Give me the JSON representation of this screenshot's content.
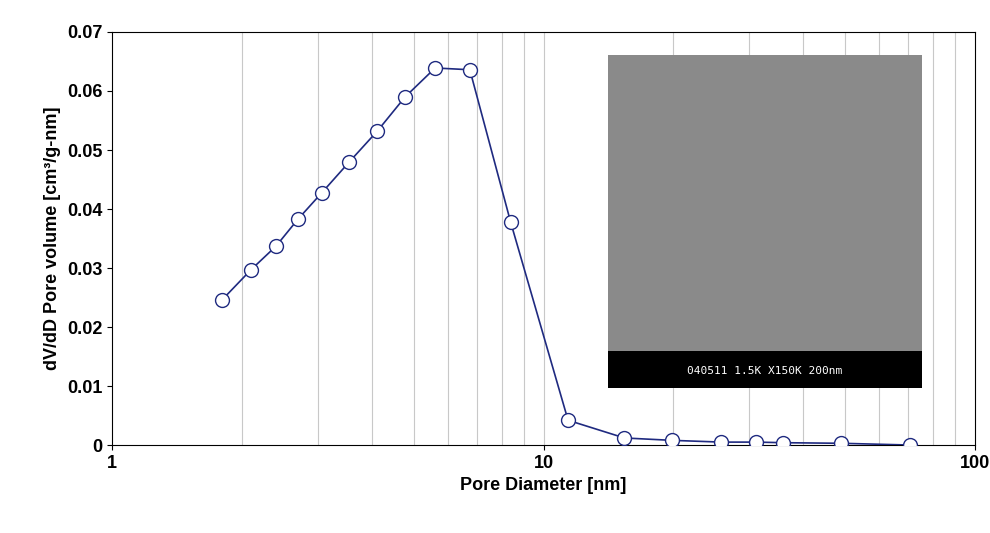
{
  "chart_data": {
    "type": "line",
    "x_label": "Pore Diameter [nm]",
    "y_label": "dV/dD Pore volume [cm³/g-nm]",
    "inset_caption": "040511 1.5K X150K 200nm",
    "x": [
      1.8,
      2.1,
      2.4,
      2.7,
      3.06,
      3.55,
      4.12,
      4.78,
      5.61,
      6.75,
      8.39,
      11.4,
      15.4,
      19.8,
      25.8,
      31.1,
      35.9,
      48.9,
      70.8
    ],
    "values": [
      0.0246,
      0.0297,
      0.0337,
      0.0383,
      0.0427,
      0.048,
      0.0532,
      0.059,
      0.0639,
      0.0636,
      0.0378,
      0.0042,
      0.0012,
      0.0008,
      0.0005,
      0.0005,
      0.0004,
      0.0003,
      0.0
    ],
    "color": "#1f2a80",
    "marker": "o",
    "line_style": "solid",
    "log": "x",
    "xlim": [
      1,
      100
    ],
    "xticks": [
      1,
      10,
      100
    ],
    "ylim": [
      0,
      0.07
    ],
    "yticks": [
      0,
      0.01,
      0.02,
      0.03,
      0.04,
      0.05,
      0.06,
      0.07
    ],
    "grid": "x"
  }
}
